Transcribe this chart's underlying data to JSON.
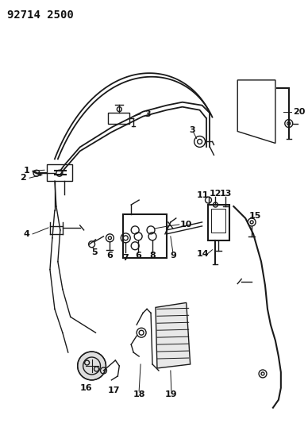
{
  "title": "92714 2500",
  "bg_color": "#ffffff",
  "line_color": "#1a1a1a",
  "label_color": "#111111",
  "title_fontsize": 10,
  "label_fontsize": 8,
  "fig_width": 3.88,
  "fig_height": 5.33,
  "dpi": 100
}
